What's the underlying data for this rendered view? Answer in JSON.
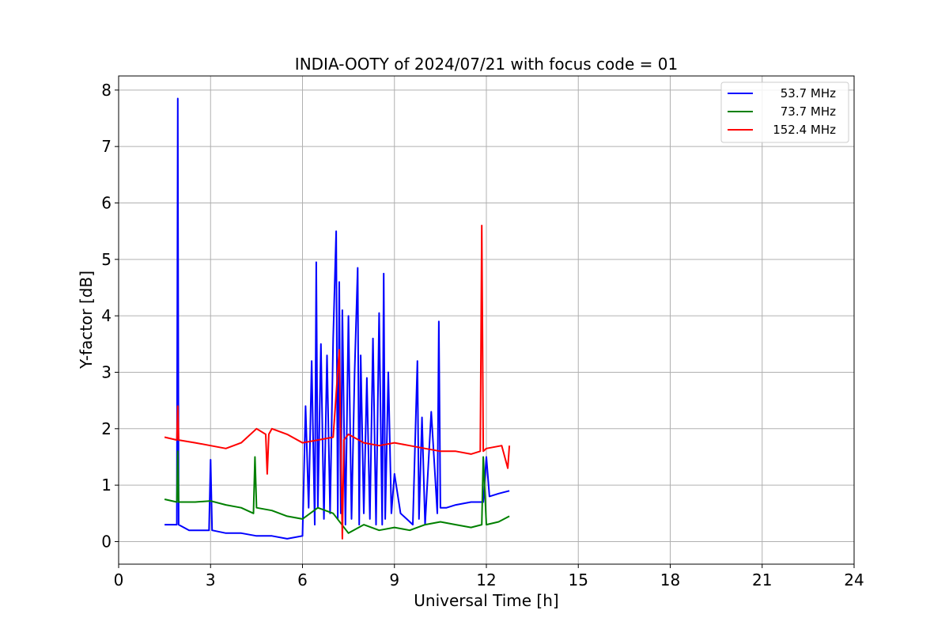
{
  "chart_data": {
    "type": "line",
    "title": "INDIA-OOTY of 2024/07/21 with focus code = 01",
    "xlabel": "Universal Time [h]",
    "ylabel": "Y-factor [dB]",
    "xlim": [
      0,
      24
    ],
    "ylim": [
      -0.4,
      8.25
    ],
    "xticks": [
      "0",
      "3",
      "6",
      "9",
      "12",
      "15",
      "18",
      "21",
      "24"
    ],
    "yticks": [
      "0",
      "1",
      "2",
      "3",
      "4",
      "5",
      "6",
      "7",
      "8"
    ],
    "grid": true,
    "legend_position": "top-right",
    "series": [
      {
        "name": "53.7 MHz",
        "color": "#0000ff",
        "x": [
          1.5,
          1.9,
          1.93,
          1.96,
          2.3,
          2.95,
          3.0,
          3.05,
          3.5,
          4.0,
          4.5,
          5.0,
          5.5,
          6.0,
          6.1,
          6.2,
          6.3,
          6.4,
          6.45,
          6.5,
          6.6,
          6.7,
          6.8,
          6.9,
          7.0,
          7.1,
          7.15,
          7.2,
          7.25,
          7.3,
          7.4,
          7.5,
          7.6,
          7.7,
          7.8,
          7.85,
          7.9,
          8.0,
          8.1,
          8.2,
          8.3,
          8.4,
          8.5,
          8.6,
          8.65,
          8.7,
          8.8,
          8.9,
          9.0,
          9.2,
          9.4,
          9.6,
          9.75,
          9.8,
          9.9,
          10.0,
          10.2,
          10.4,
          10.45,
          10.5,
          10.7,
          11.0,
          11.5,
          11.9,
          12.0,
          12.1,
          12.4,
          12.75
        ],
        "y": [
          0.3,
          0.3,
          7.85,
          0.3,
          0.2,
          0.2,
          1.45,
          0.2,
          0.15,
          0.15,
          0.1,
          0.1,
          0.05,
          0.1,
          2.4,
          0.6,
          3.2,
          0.3,
          4.95,
          0.6,
          3.5,
          0.4,
          3.3,
          0.5,
          3.6,
          5.5,
          0.4,
          4.6,
          0.5,
          4.1,
          0.3,
          4.0,
          0.4,
          3.0,
          4.85,
          0.3,
          3.3,
          0.5,
          2.9,
          0.4,
          3.6,
          0.3,
          4.05,
          0.3,
          4.75,
          0.4,
          3.0,
          0.5,
          1.2,
          0.5,
          0.4,
          0.3,
          3.2,
          0.4,
          2.2,
          0.3,
          2.3,
          0.5,
          3.9,
          0.6,
          0.6,
          0.65,
          0.7,
          0.7,
          1.5,
          0.8,
          0.85,
          0.9
        ]
      },
      {
        "name": "73.7 MHz",
        "color": "#008000",
        "x": [
          1.5,
          1.9,
          1.93,
          1.96,
          2.5,
          3.0,
          3.5,
          4.0,
          4.4,
          4.45,
          4.5,
          5.0,
          5.5,
          6.0,
          6.5,
          7.0,
          7.5,
          8.0,
          8.5,
          9.0,
          9.5,
          10.0,
          10.5,
          11.0,
          11.5,
          11.85,
          11.9,
          12.0,
          12.4,
          12.75
        ],
        "y": [
          0.75,
          0.7,
          1.6,
          0.7,
          0.7,
          0.72,
          0.65,
          0.6,
          0.5,
          1.5,
          0.6,
          0.55,
          0.45,
          0.4,
          0.6,
          0.5,
          0.15,
          0.3,
          0.2,
          0.25,
          0.2,
          0.3,
          0.35,
          0.3,
          0.25,
          0.3,
          1.5,
          0.3,
          0.35,
          0.45
        ]
      },
      {
        "name": "152.4 MHz",
        "color": "#ff0000",
        "x": [
          1.5,
          1.9,
          1.93,
          1.96,
          2.5,
          3.0,
          3.5,
          4.0,
          4.5,
          4.8,
          4.85,
          4.9,
          5.0,
          5.5,
          6.0,
          6.5,
          7.0,
          7.2,
          7.3,
          7.35,
          7.5,
          8.0,
          8.5,
          9.0,
          9.5,
          10.0,
          10.5,
          11.0,
          11.5,
          11.8,
          11.85,
          11.9,
          12.0,
          12.5,
          12.7,
          12.75
        ],
        "y": [
          1.85,
          1.8,
          2.4,
          1.8,
          1.75,
          1.7,
          1.65,
          1.75,
          2.0,
          1.9,
          1.2,
          1.9,
          2.0,
          1.9,
          1.75,
          1.8,
          1.85,
          3.4,
          0.05,
          1.8,
          1.9,
          1.75,
          1.7,
          1.75,
          1.7,
          1.65,
          1.6,
          1.6,
          1.55,
          1.6,
          5.6,
          1.6,
          1.65,
          1.7,
          1.3,
          1.7
        ]
      }
    ]
  }
}
